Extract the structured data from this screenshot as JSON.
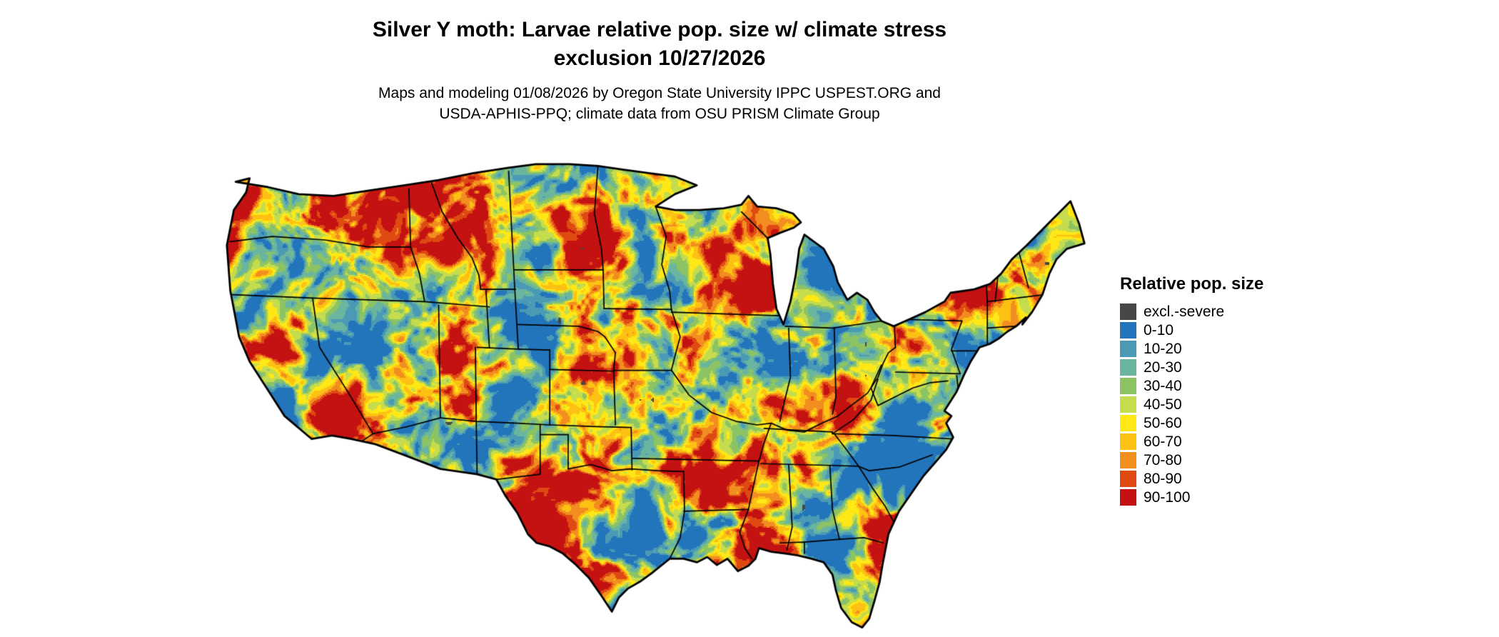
{
  "title": {
    "line1": "Silver Y moth: Larvae relative pop. size w/ climate stress",
    "line2": "exclusion 10/27/2026"
  },
  "subtitle": {
    "line1": "Maps and modeling 01/08/2026 by Oregon State University IPPC USPEST.ORG and",
    "line2": "USDA-APHIS-PPQ; climate data from OSU PRISM Climate Group"
  },
  "legend": {
    "title": "Relative pop. size",
    "items": [
      {
        "label": "excl.-severe",
        "color": "#474747"
      },
      {
        "label": "0-10",
        "color": "#2274bb"
      },
      {
        "label": "10-20",
        "color": "#4a9ab5"
      },
      {
        "label": "20-30",
        "color": "#6ab5a0"
      },
      {
        "label": "30-40",
        "color": "#8cc363"
      },
      {
        "label": "40-50",
        "color": "#c5dc4e"
      },
      {
        "label": "50-60",
        "color": "#ffe815"
      },
      {
        "label": "60-70",
        "color": "#fdc113"
      },
      {
        "label": "70-80",
        "color": "#f28d20"
      },
      {
        "label": "80-90",
        "color": "#df4a13"
      },
      {
        "label": "90-100",
        "color": "#c41111"
      }
    ]
  },
  "map": {
    "description": "Continental US raster map of Silver Y moth larvae relative population size with climate stress exclusion",
    "palette": [
      "#2274bb",
      "#4a9ab5",
      "#6ab5a0",
      "#8cc363",
      "#c5dc4e",
      "#ffe815",
      "#fdc113",
      "#f28d20",
      "#df4a13",
      "#c41111"
    ],
    "exclusion_color": "#474747",
    "border_color": "#000000"
  }
}
